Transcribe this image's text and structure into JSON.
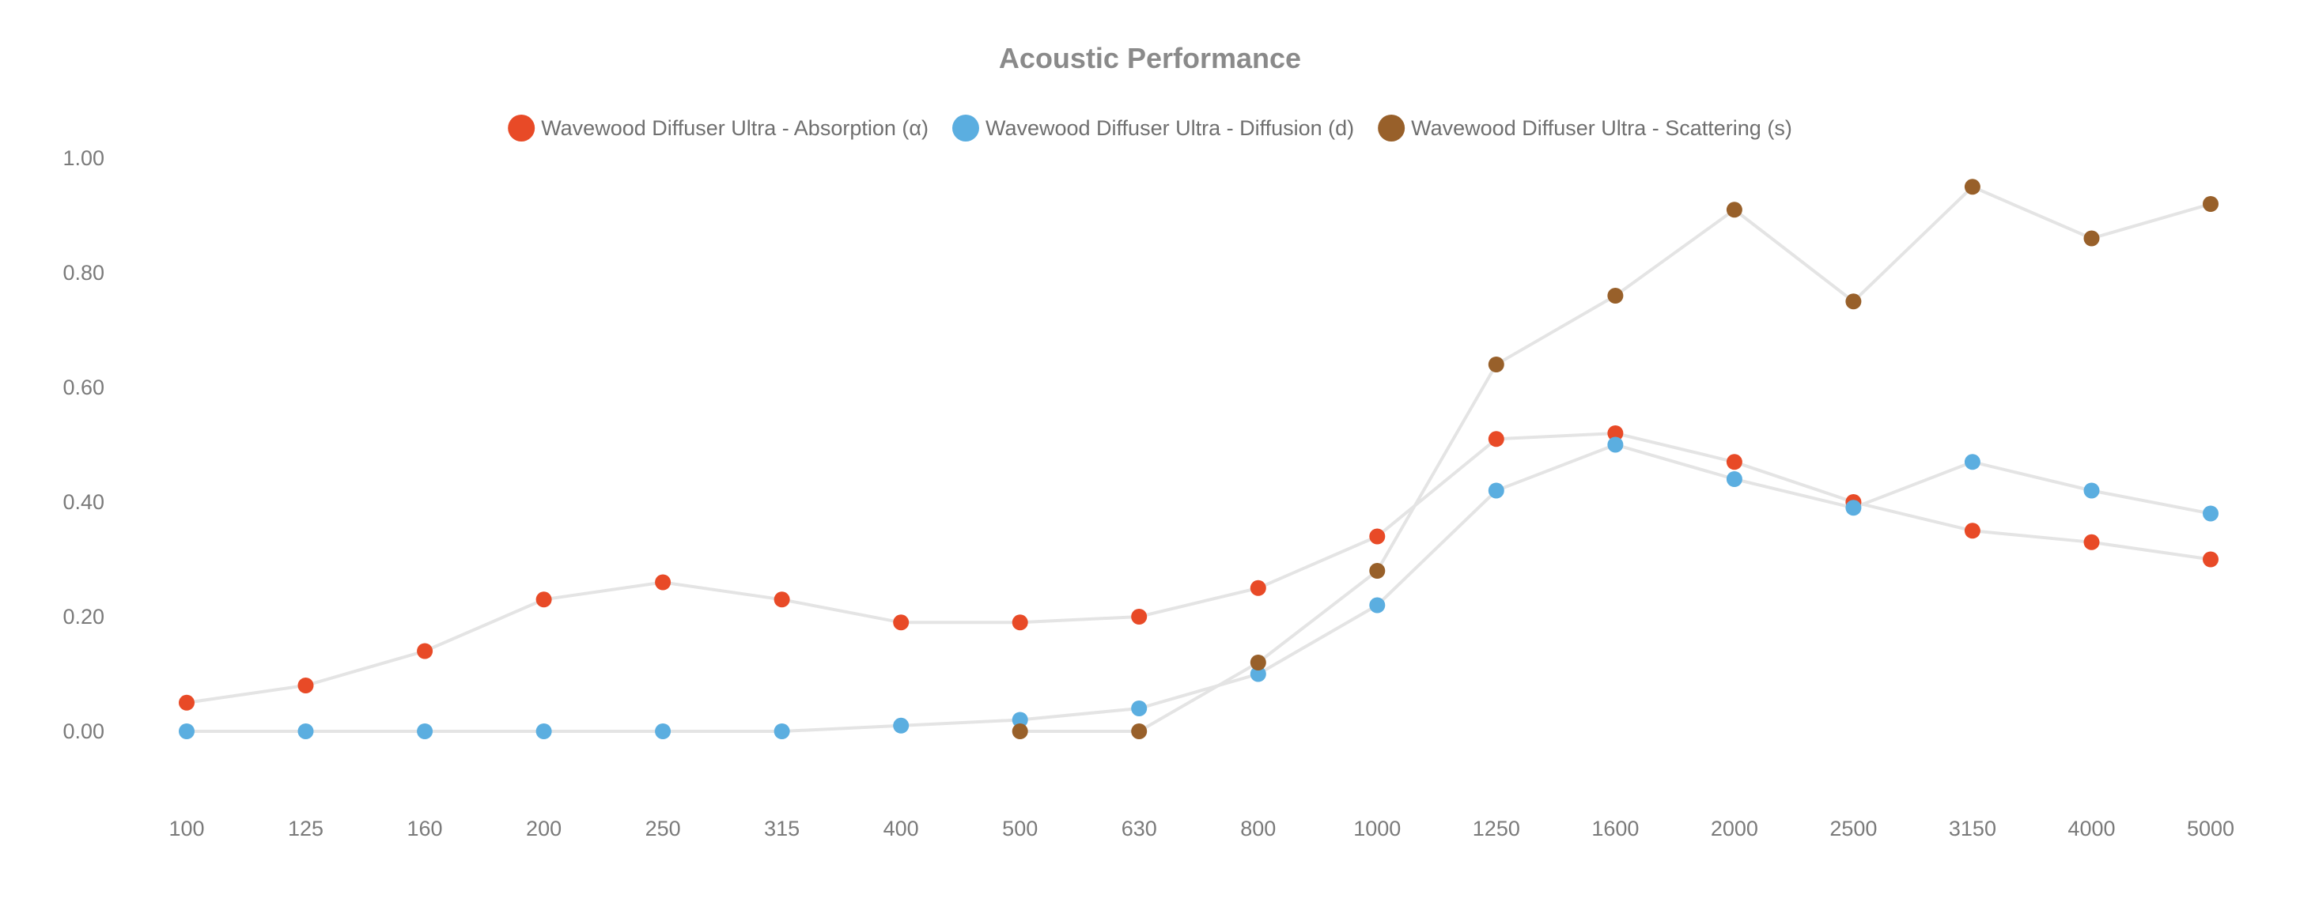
{
  "chart_data": {
    "type": "line",
    "title": "Acoustic Performance",
    "xlabel": "",
    "ylabel": "",
    "categories": [
      "100",
      "125",
      "160",
      "200",
      "250",
      "315",
      "400",
      "500",
      "630",
      "800",
      "1000",
      "1250",
      "1600",
      "2000",
      "2500",
      "3150",
      "4000",
      "5000"
    ],
    "yticks": [
      "0.00",
      "0.20",
      "0.40",
      "0.60",
      "0.80",
      "1.00"
    ],
    "ylim": [
      -0.1,
      1.0
    ],
    "grid": false,
    "legend_position": "top-center",
    "line_color": "#e4e4e4",
    "series": [
      {
        "name": "Wavewood Diffuser Ultra - Absorption (α)",
        "color": "#e84a27",
        "values": [
          0.05,
          0.08,
          0.14,
          0.23,
          0.26,
          0.23,
          0.19,
          0.19,
          0.2,
          0.25,
          0.34,
          0.51,
          0.52,
          0.47,
          0.4,
          0.35,
          0.33,
          0.3
        ]
      },
      {
        "name": "Wavewood Diffuser Ultra - Diffusion (d)",
        "color": "#5baee0",
        "values": [
          0.0,
          0.0,
          0.0,
          0.0,
          0.0,
          0.0,
          0.01,
          0.02,
          0.04,
          0.1,
          0.22,
          0.42,
          0.5,
          0.44,
          0.39,
          0.47,
          0.42,
          0.38
        ]
      },
      {
        "name": "Wavewood Diffuser Ultra - Scattering (s)",
        "color": "#98602a",
        "values": [
          null,
          null,
          null,
          null,
          null,
          null,
          null,
          0.0,
          0.0,
          0.12,
          0.28,
          0.64,
          0.76,
          0.91,
          0.75,
          0.95,
          0.86,
          0.92
        ]
      }
    ]
  }
}
